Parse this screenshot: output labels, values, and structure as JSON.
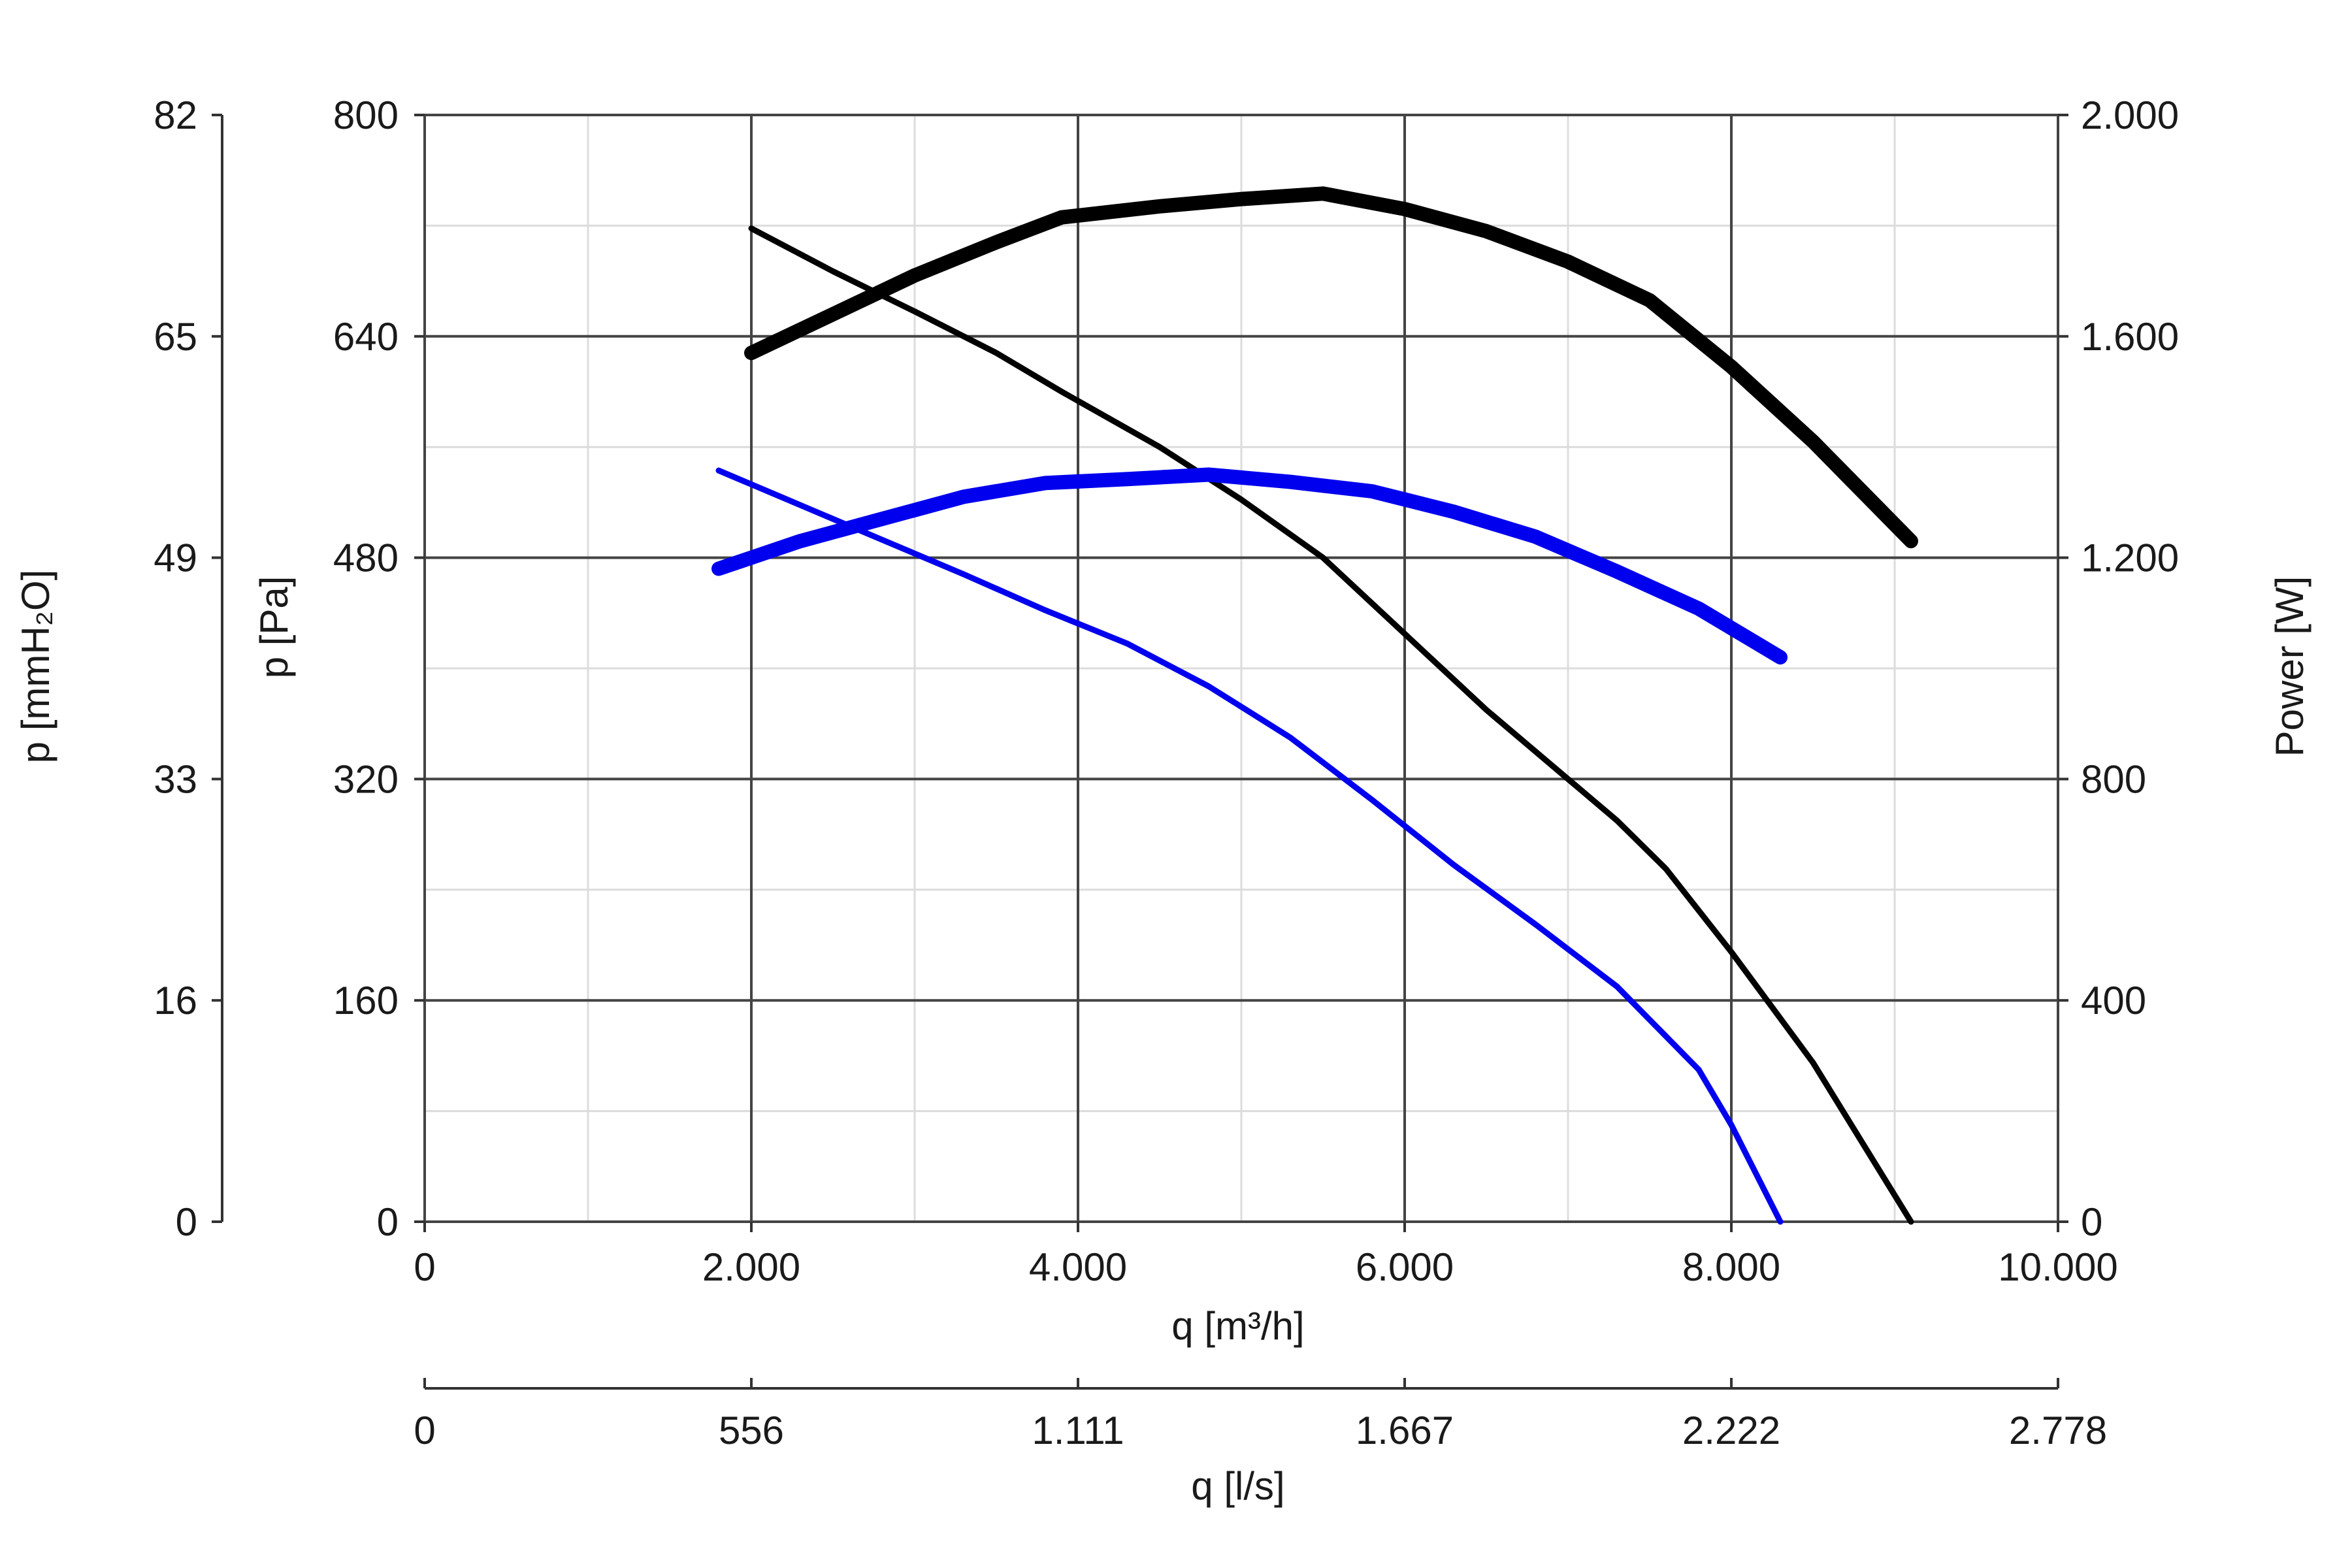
{
  "chart_data": {
    "type": "line",
    "x_axis": {
      "label": "q [m³/h]",
      "range": [
        0,
        10000
      ],
      "ticks": [
        0,
        2000,
        4000,
        6000,
        8000,
        10000
      ],
      "tick_labels": [
        "0",
        "2.000",
        "4.000",
        "6.000",
        "8.000",
        "10.000"
      ]
    },
    "x_axis_secondary": {
      "label": "q [l/s]",
      "range": [
        0,
        2778
      ],
      "ticks": [
        0,
        556,
        1111,
        1667,
        2222,
        2778
      ],
      "tick_labels": [
        "0",
        "556",
        "1.111",
        "1.667",
        "2.222",
        "2.778"
      ]
    },
    "y_axis": {
      "label": "p [Pa]",
      "range": [
        0,
        800
      ],
      "ticks": [
        0,
        160,
        320,
        480,
        640,
        800
      ],
      "tick_labels": [
        "0",
        "160",
        "320",
        "480",
        "640",
        "800"
      ]
    },
    "y_axis_outer": {
      "label": "p [mmH₂O]",
      "range": [
        0,
        82
      ],
      "tick_labels": [
        "0",
        "16",
        "33",
        "49",
        "65",
        "82"
      ]
    },
    "y_axis_right": {
      "label": "Power [W]",
      "range": [
        0,
        2000
      ],
      "ticks": [
        0,
        400,
        800,
        1200,
        1600,
        2000
      ],
      "tick_labels": [
        "0",
        "400",
        "800",
        "1.200",
        "1.600",
        "2.000"
      ]
    },
    "grid": true,
    "series": [
      {
        "color": "#000000",
        "width": 9,
        "axis": "left",
        "x": [
          2000,
          2500,
          3000,
          3500,
          3900,
          4500,
          5000,
          5500,
          6000,
          6500,
          7000,
          7300,
          7600,
          8000,
          8500,
          9100
        ],
        "y": [
          718,
          687,
          658,
          628,
          600,
          560,
          522,
          480,
          425,
          370,
          320,
          290,
          255,
          195,
          115,
          0
        ]
      },
      {
        "color": "#0000ee",
        "width": 9,
        "axis": "left",
        "x": [
          1800,
          2300,
          2800,
          3300,
          3800,
          4300,
          4800,
          5300,
          5800,
          6300,
          6800,
          7300,
          7800,
          8000,
          8300
        ],
        "y": [
          543,
          518,
          493,
          468,
          442,
          418,
          387,
          350,
          305,
          258,
          215,
          170,
          110,
          70,
          0
        ]
      },
      {
        "color": "#000000",
        "width": 22,
        "axis": "right",
        "x": [
          2000,
          2500,
          3000,
          3500,
          3900,
          4500,
          5000,
          5500,
          6000,
          6500,
          7000,
          7500,
          8000,
          8500,
          9100
        ],
        "y": [
          1570,
          1640,
          1710,
          1770,
          1815,
          1835,
          1848,
          1858,
          1830,
          1790,
          1735,
          1665,
          1545,
          1410,
          1230
        ]
      },
      {
        "color": "#0000ee",
        "width": 22,
        "axis": "right",
        "x": [
          1800,
          2300,
          2800,
          3300,
          3800,
          4300,
          4800,
          5300,
          5800,
          6300,
          6800,
          7300,
          7800,
          8300
        ],
        "y": [
          1180,
          1230,
          1270,
          1310,
          1335,
          1342,
          1350,
          1337,
          1320,
          1283,
          1238,
          1175,
          1108,
          1020
        ]
      }
    ]
  }
}
